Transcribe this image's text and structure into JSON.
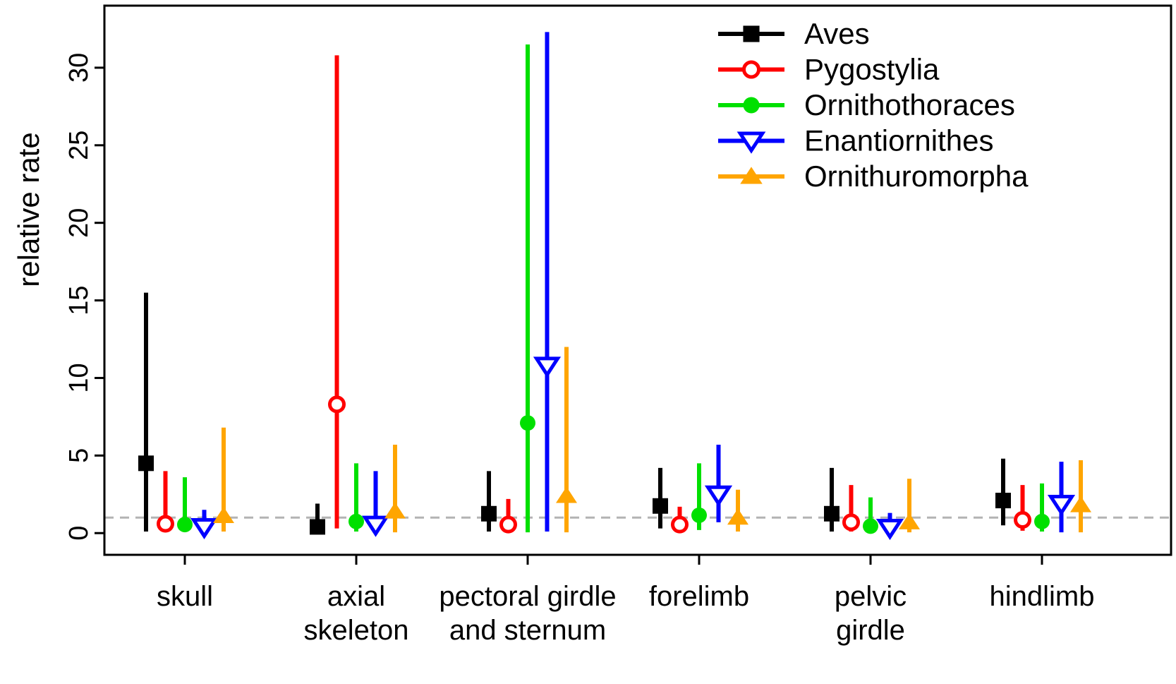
{
  "chart_data": {
    "type": "scatter",
    "title": "",
    "xlabel": "",
    "ylabel": "relative rate",
    "ylim": [
      -1.4,
      34
    ],
    "yticks": [
      0,
      5,
      10,
      15,
      20,
      25,
      30
    ],
    "reference_line_y": 1,
    "reference_line_style": "dashed-gray",
    "grid": false,
    "legend_position": "top-right",
    "categories": [
      {
        "id": "skull",
        "label_lines": [
          "skull"
        ]
      },
      {
        "id": "axial-skeleton",
        "label_lines": [
          "axial",
          "skeleton"
        ]
      },
      {
        "id": "pectoral-girdle-and-sternum",
        "label_lines": [
          "pectoral girdle",
          "and sternum"
        ]
      },
      {
        "id": "forelimb",
        "label_lines": [
          "forelimb"
        ]
      },
      {
        "id": "pelvic-girdle",
        "label_lines": [
          "pelvic",
          "girdle"
        ]
      },
      {
        "id": "hindlimb",
        "label_lines": [
          "hindlimb"
        ]
      }
    ],
    "series": [
      {
        "name": "Aves",
        "color": "#000000",
        "marker": "square-filled",
        "points": [
          {
            "low": 0.1,
            "mid": 4.5,
            "high": 15.5
          },
          {
            "low": 0.05,
            "mid": 0.4,
            "high": 1.9
          },
          {
            "low": 0.1,
            "mid": 1.25,
            "high": 4.0
          },
          {
            "low": 0.3,
            "mid": 1.75,
            "high": 4.2
          },
          {
            "low": 0.1,
            "mid": 1.25,
            "high": 4.2
          },
          {
            "low": 0.5,
            "mid": 2.1,
            "high": 4.8
          }
        ]
      },
      {
        "name": "Pygostylia",
        "color": "#ff0000",
        "marker": "circle-open",
        "points": [
          {
            "low": 0.1,
            "mid": 0.6,
            "high": 4.0
          },
          {
            "low": 0.3,
            "mid": 8.3,
            "high": 30.8
          },
          {
            "low": 0.05,
            "mid": 0.55,
            "high": 2.2
          },
          {
            "low": 0.1,
            "mid": 0.55,
            "high": 1.7
          },
          {
            "low": 0.1,
            "mid": 0.7,
            "high": 3.1
          },
          {
            "low": 0.15,
            "mid": 0.85,
            "high": 3.1
          }
        ]
      },
      {
        "name": "Ornithothoraces",
        "color": "#00e000",
        "marker": "circle-filled",
        "points": [
          {
            "low": 0.1,
            "mid": 0.55,
            "high": 3.6
          },
          {
            "low": 0.1,
            "mid": 0.75,
            "high": 4.5
          },
          {
            "low": 0.05,
            "mid": 7.1,
            "high": 31.5
          },
          {
            "low": 0.2,
            "mid": 1.15,
            "high": 4.5
          },
          {
            "low": 0.05,
            "mid": 0.45,
            "high": 2.3
          },
          {
            "low": 0.1,
            "mid": 0.75,
            "high": 3.2
          }
        ]
      },
      {
        "name": "Enantiornithes",
        "color": "#0000ff",
        "marker": "triangle-down-open",
        "points": [
          {
            "low": 0.0,
            "mid": 0.4,
            "high": 1.5
          },
          {
            "low": 0.0,
            "mid": 0.55,
            "high": 4.0
          },
          {
            "low": 0.1,
            "mid": 10.8,
            "high": 32.3
          },
          {
            "low": 0.7,
            "mid": 2.5,
            "high": 5.7
          },
          {
            "low": 0.0,
            "mid": 0.35,
            "high": 1.3
          },
          {
            "low": 0.05,
            "mid": 1.9,
            "high": 4.6
          }
        ]
      },
      {
        "name": "Ornithuromorpha",
        "color": "#ffa500",
        "marker": "triangle-up-filled",
        "points": [
          {
            "low": 0.1,
            "mid": 1.1,
            "high": 6.8
          },
          {
            "low": 0.05,
            "mid": 1.4,
            "high": 5.7
          },
          {
            "low": 0.05,
            "mid": 2.4,
            "high": 12.0
          },
          {
            "low": 0.1,
            "mid": 1.0,
            "high": 2.8
          },
          {
            "low": 0.05,
            "mid": 0.7,
            "high": 3.5
          },
          {
            "low": 0.05,
            "mid": 1.8,
            "high": 4.7
          }
        ]
      }
    ],
    "colors": {
      "axis": "#000000",
      "reference_line": "#b3b3b3",
      "background": "#ffffff"
    }
  }
}
